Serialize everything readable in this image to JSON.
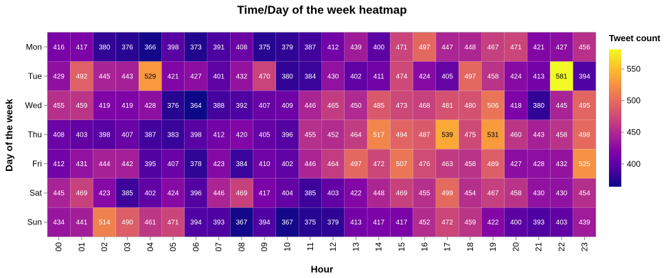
{
  "chart_data": {
    "type": "heatmap",
    "title": "Time/Day of the week heatmap",
    "xlabel": "Hour",
    "ylabel": "Day of the week",
    "x_categories": [
      "00",
      "01",
      "02",
      "03",
      "04",
      "05",
      "06",
      "07",
      "08",
      "09",
      "10",
      "11",
      "12",
      "13",
      "14",
      "15",
      "16",
      "17",
      "18",
      "19",
      "20",
      "21",
      "22",
      "23"
    ],
    "y_categories": [
      "Mon",
      "Tue",
      "Wed",
      "Thu",
      "Fri",
      "Sat",
      "Sun"
    ],
    "values": [
      [
        416,
        417,
        380,
        376,
        366,
        398,
        373,
        391,
        408,
        375,
        379,
        387,
        412,
        439,
        400,
        471,
        497,
        447,
        448,
        467,
        471,
        421,
        427,
        456
      ],
      [
        429,
        492,
        445,
        443,
        529,
        421,
        427,
        401,
        432,
        470,
        380,
        384,
        430,
        402,
        411,
        474,
        424,
        405,
        497,
        458,
        424,
        413,
        581,
        394
      ],
      [
        455,
        459,
        419,
        419,
        428,
        376,
        364,
        388,
        392,
        407,
        409,
        446,
        465,
        450,
        485,
        473,
        468,
        481,
        480,
        506,
        418,
        380,
        445,
        495
      ],
      [
        408,
        403,
        398,
        407,
        387,
        383,
        398,
        412,
        420,
        405,
        396,
        455,
        452,
        464,
        517,
        494,
        487,
        539,
        475,
        531,
        460,
        443,
        458,
        498
      ],
      [
        412,
        431,
        444,
        442,
        395,
        407,
        378,
        423,
        384,
        410,
        402,
        446,
        464,
        497,
        472,
        507,
        476,
        463,
        458,
        489,
        427,
        428,
        432,
        525
      ],
      [
        445,
        469,
        423,
        385,
        402,
        424,
        396,
        446,
        469,
        417,
        404,
        385,
        403,
        422,
        448,
        469,
        455,
        499,
        454,
        467,
        458,
        430,
        430,
        454
      ],
      [
        434,
        441,
        514,
        490,
        461,
        471,
        394,
        393,
        367,
        394,
        367,
        375,
        379,
        413,
        417,
        417,
        452,
        472,
        459,
        422,
        400,
        393,
        403,
        439
      ]
    ],
    "color_scale": {
      "name": "plasma",
      "domain": [
        364,
        581
      ],
      "legend_title": "Tweet count",
      "legend_ticks": [
        400,
        450,
        500,
        550
      ]
    }
  }
}
